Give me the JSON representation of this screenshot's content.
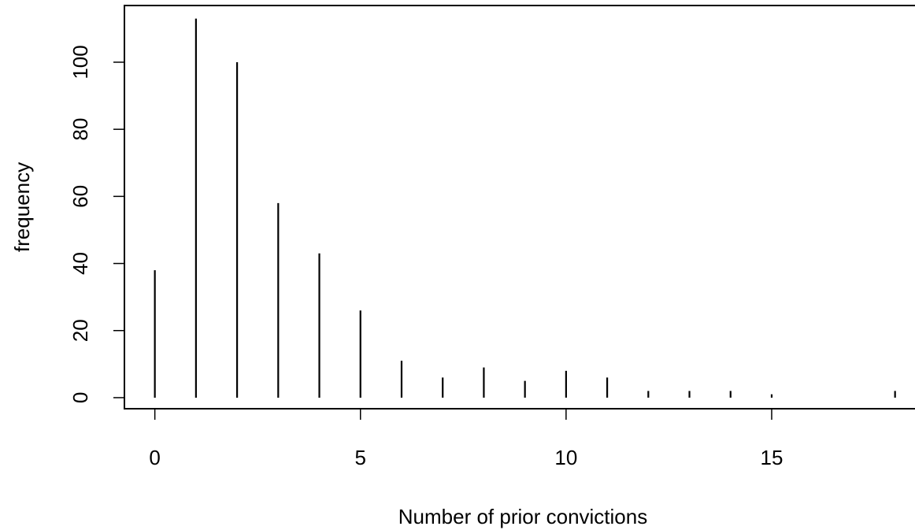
{
  "chart_data": {
    "type": "bar",
    "style": "spike",
    "title": "",
    "xlabel": "Number of prior convictions",
    "ylabel": "frequency",
    "x": [
      0,
      1,
      2,
      3,
      4,
      5,
      6,
      7,
      8,
      9,
      10,
      11,
      12,
      13,
      14,
      15,
      18
    ],
    "values": [
      38,
      113,
      100,
      58,
      43,
      26,
      11,
      6,
      9,
      5,
      8,
      6,
      2,
      2,
      2,
      1,
      2
    ],
    "xlim": [
      -0.74,
      18.6
    ],
    "ylim": [
      -3.3,
      116.9
    ],
    "xticks": [
      0,
      5,
      10,
      15
    ],
    "xtick_labels": [
      "0",
      "5",
      "10",
      "15"
    ],
    "yticks": [
      0,
      20,
      40,
      60,
      80,
      100
    ],
    "ytick_labels": [
      "0",
      "20",
      "40",
      "60",
      "80",
      "100"
    ],
    "grid": false,
    "bar_color": "#000000",
    "axis_color": "#000000"
  }
}
